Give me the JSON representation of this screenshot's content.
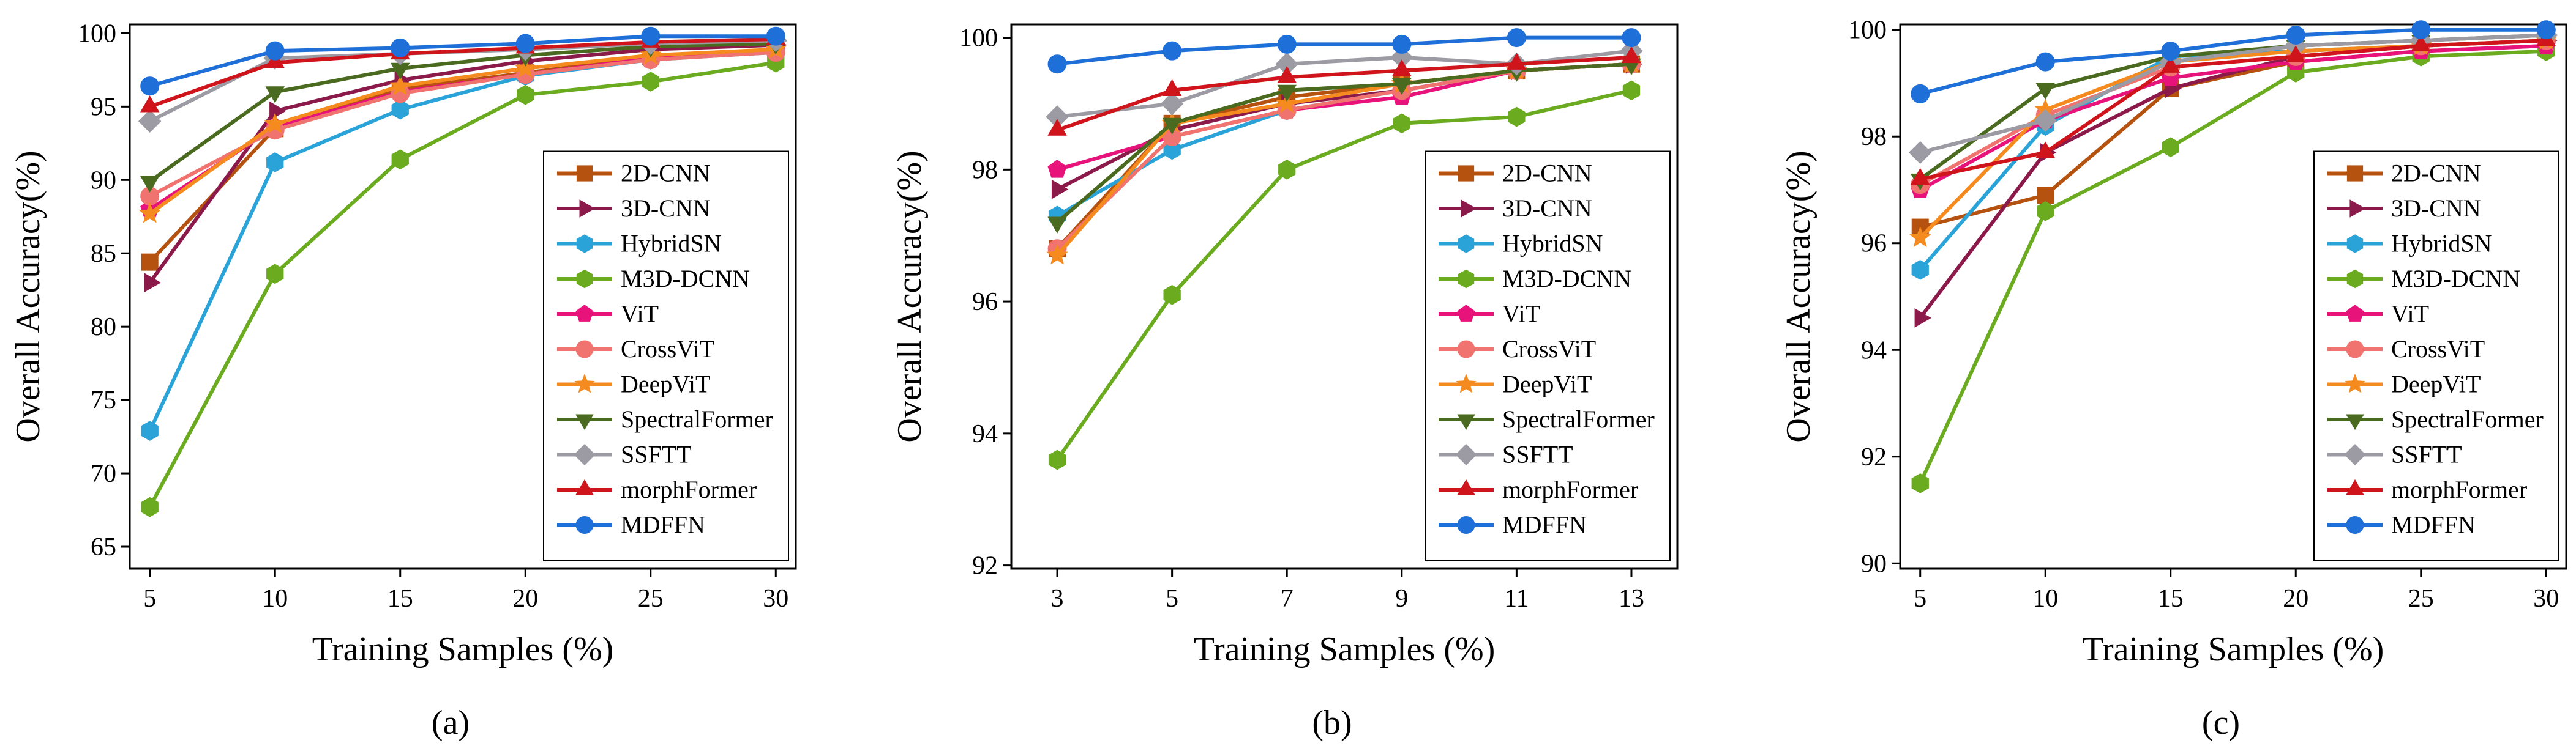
{
  "figure": {
    "colors": {
      "2D-CNN": "#b5520f",
      "3D-CNN": "#8b1a4a",
      "HybridSN": "#2aa3d9",
      "M3D-DCNN": "#6aab1f",
      "ViT": "#e8127b",
      "CrossViT": "#f0736f",
      "DeepViT": "#f58a1f",
      "SpectralFormer": "#4a6b1f",
      "SSFTT": "#9c9aa3",
      "morphFormer": "#d0141c",
      "MDFFN": "#1f6fd9"
    },
    "markers": {
      "2D-CNN": "square",
      "3D-CNN": "triangle-right",
      "HybridSN": "hexagon",
      "M3D-DCNN": "hexagon",
      "ViT": "pentagon",
      "CrossViT": "circle",
      "DeepViT": "star",
      "SpectralFormer": "triangle-down",
      "SSFTT": "diamond",
      "morphFormer": "triangle-up",
      "MDFFN": "circle"
    }
  },
  "chart_data": [
    {
      "type": "line",
      "caption": "(a)",
      "xlabel": "Training Samples (%)",
      "ylabel": "Overall Accuracy(%)",
      "x": [
        5,
        10,
        15,
        20,
        25,
        30
      ],
      "xticks": [
        5,
        10,
        15,
        20,
        25,
        30
      ],
      "xlim": [
        4.2,
        30.8
      ],
      "ylim": [
        63.5,
        100.6
      ],
      "yticks": [
        65,
        70,
        75,
        80,
        85,
        90,
        95,
        100
      ],
      "legend_position": "lower-right",
      "series": [
        {
          "name": "2D-CNN",
          "values": [
            84.4,
            93.5,
            96.2,
            97.3,
            98.4,
            98.9
          ]
        },
        {
          "name": "3D-CNN",
          "values": [
            83.0,
            94.7,
            96.8,
            98.1,
            98.9,
            99.2
          ]
        },
        {
          "name": "HybridSN",
          "values": [
            72.9,
            91.2,
            94.8,
            97.1,
            98.2,
            98.7
          ]
        },
        {
          "name": "M3D-DCNN",
          "values": [
            67.7,
            83.6,
            91.4,
            95.8,
            96.7,
            98.0
          ]
        },
        {
          "name": "ViT",
          "values": [
            88.0,
            93.6,
            96.0,
            97.2,
            98.3,
            98.8
          ]
        },
        {
          "name": "CrossViT",
          "values": [
            88.9,
            93.4,
            95.9,
            97.2,
            98.2,
            98.7
          ]
        },
        {
          "name": "DeepViT",
          "values": [
            87.7,
            93.8,
            96.4,
            97.6,
            98.5,
            98.9
          ]
        },
        {
          "name": "SpectralFormer",
          "values": [
            89.9,
            96.0,
            97.6,
            98.5,
            99.1,
            99.3
          ]
        },
        {
          "name": "SSFTT",
          "values": [
            94.0,
            98.3,
            98.6,
            98.9,
            99.3,
            99.5
          ]
        },
        {
          "name": "morphFormer",
          "values": [
            95.0,
            98.0,
            98.6,
            99.0,
            99.4,
            99.6
          ]
        },
        {
          "name": "MDFFN",
          "values": [
            96.4,
            98.8,
            99.0,
            99.3,
            99.8,
            99.8
          ]
        }
      ]
    },
    {
      "type": "line",
      "caption": "(b)",
      "xlabel": "Training Samples (%)",
      "ylabel": "Overall Accuracy(%)",
      "x": [
        3,
        5,
        7,
        9,
        11,
        13
      ],
      "xticks": [
        3,
        5,
        7,
        9,
        11,
        13
      ],
      "xlim": [
        2.2,
        13.8
      ],
      "ylim": [
        91.95,
        100.2
      ],
      "yticks": [
        92,
        94,
        96,
        98,
        100
      ],
      "legend_position": "lower-right",
      "series": [
        {
          "name": "2D-CNN",
          "values": [
            96.8,
            98.7,
            99.1,
            99.3,
            99.5,
            99.6
          ]
        },
        {
          "name": "3D-CNN",
          "values": [
            97.7,
            98.6,
            99.0,
            99.2,
            99.5,
            99.6
          ]
        },
        {
          "name": "HybridSN",
          "values": [
            97.3,
            98.3,
            98.9,
            99.2,
            99.5,
            99.6
          ]
        },
        {
          "name": "M3D-DCNN",
          "values": [
            93.6,
            96.1,
            98.0,
            98.7,
            98.8,
            99.2
          ]
        },
        {
          "name": "ViT",
          "values": [
            98.0,
            98.5,
            98.9,
            99.1,
            99.5,
            99.6
          ]
        },
        {
          "name": "CrossViT",
          "values": [
            96.8,
            98.5,
            98.9,
            99.2,
            99.5,
            99.6
          ]
        },
        {
          "name": "DeepViT",
          "values": [
            96.7,
            98.7,
            99.0,
            99.3,
            99.5,
            99.6
          ]
        },
        {
          "name": "SpectralFormer",
          "values": [
            97.2,
            98.7,
            99.2,
            99.3,
            99.5,
            99.6
          ]
        },
        {
          "name": "SSFTT",
          "values": [
            98.8,
            99.0,
            99.6,
            99.7,
            99.6,
            99.8
          ]
        },
        {
          "name": "morphFormer",
          "values": [
            98.6,
            99.2,
            99.4,
            99.5,
            99.6,
            99.7
          ]
        },
        {
          "name": "MDFFN",
          "values": [
            99.6,
            99.8,
            99.9,
            99.9,
            100.0,
            100.0
          ]
        }
      ]
    },
    {
      "type": "line",
      "caption": "(c)",
      "xlabel": "Training Samples (%)",
      "ylabel": "Overall Accuracy(%)",
      "x": [
        5,
        10,
        15,
        20,
        25,
        30
      ],
      "xticks": [
        5,
        10,
        15,
        20,
        25,
        30
      ],
      "xlim": [
        4.2,
        30.8
      ],
      "ylim": [
        89.9,
        100.1
      ],
      "yticks": [
        90,
        92,
        94,
        96,
        98,
        100
      ],
      "legend_position": "lower-right",
      "series": [
        {
          "name": "2D-CNN",
          "values": [
            96.3,
            96.9,
            98.9,
            99.4,
            99.6,
            99.7
          ]
        },
        {
          "name": "3D-CNN",
          "values": [
            94.6,
            97.7,
            98.9,
            99.5,
            99.7,
            99.8
          ]
        },
        {
          "name": "HybridSN",
          "values": [
            95.5,
            98.2,
            99.5,
            99.6,
            99.7,
            99.8
          ]
        },
        {
          "name": "M3D-DCNN",
          "values": [
            91.5,
            96.6,
            97.8,
            99.2,
            99.5,
            99.6
          ]
        },
        {
          "name": "ViT",
          "values": [
            97.0,
            98.3,
            99.1,
            99.4,
            99.6,
            99.7
          ]
        },
        {
          "name": "CrossViT",
          "values": [
            97.1,
            98.4,
            99.3,
            99.5,
            99.7,
            99.8
          ]
        },
        {
          "name": "DeepViT",
          "values": [
            96.1,
            98.5,
            99.4,
            99.6,
            99.7,
            99.8
          ]
        },
        {
          "name": "SpectralFormer",
          "values": [
            97.2,
            98.9,
            99.5,
            99.7,
            99.8,
            99.9
          ]
        },
        {
          "name": "SSFTT",
          "values": [
            97.7,
            98.3,
            99.4,
            99.7,
            99.8,
            99.9
          ]
        },
        {
          "name": "morphFormer",
          "values": [
            97.2,
            97.7,
            99.3,
            99.5,
            99.7,
            99.8
          ]
        },
        {
          "name": "MDFFN",
          "values": [
            98.8,
            99.4,
            99.6,
            99.9,
            100.0,
            100.0
          ]
        }
      ]
    }
  ]
}
